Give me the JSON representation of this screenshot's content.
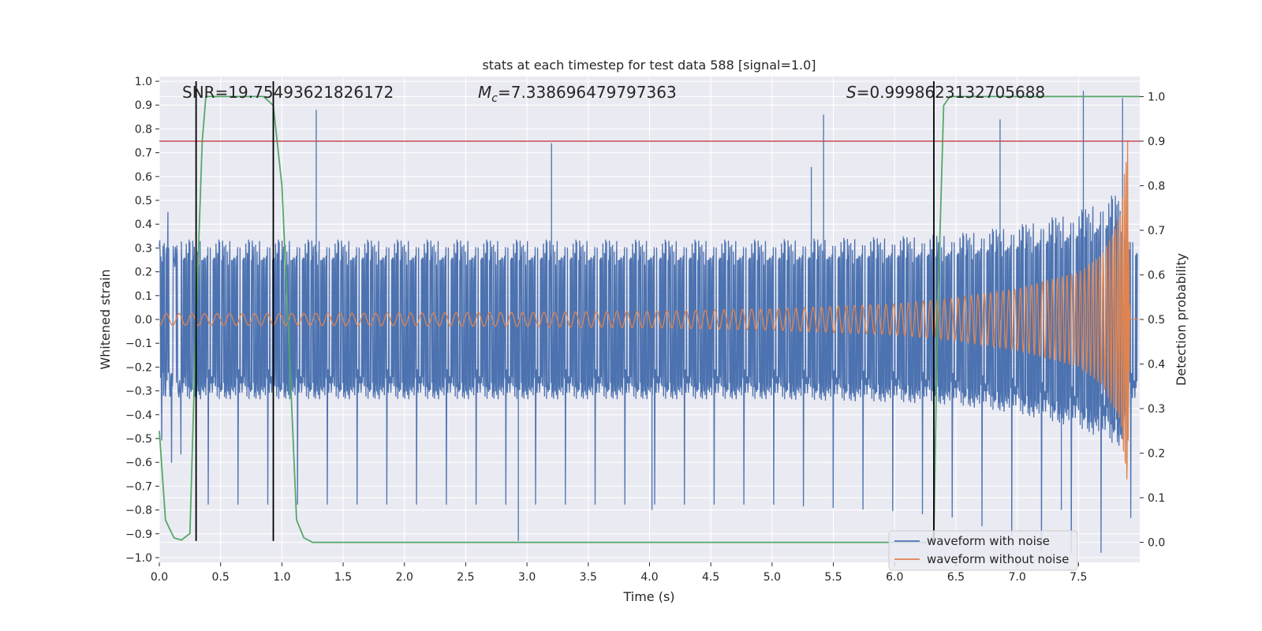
{
  "chart_data": {
    "type": "line",
    "title": "stats at each timestep for test data 588 [signal=1.0]",
    "xlabel": "Time (s)",
    "ylabel": "Whitened strain",
    "y2label": "Detection probability",
    "xlim": [
      0.0,
      8.0
    ],
    "ylim": [
      -1.02,
      1.02
    ],
    "y2lim": [
      -0.045,
      1.045
    ],
    "xticks": [
      0.0,
      0.5,
      1.0,
      1.5,
      2.0,
      2.5,
      3.0,
      3.5,
      4.0,
      4.5,
      5.0,
      5.5,
      6.0,
      6.5,
      7.0,
      7.5
    ],
    "xtick_labels": [
      "0.0",
      "0.5",
      "1.0",
      "1.5",
      "2.0",
      "2.5",
      "3.0",
      "3.5",
      "4.0",
      "4.5",
      "5.0",
      "5.5",
      "6.0",
      "6.5",
      "7.0",
      "7.5"
    ],
    "yticks": [
      1.0,
      0.9,
      0.8,
      0.7,
      0.6,
      0.5,
      0.4,
      0.3,
      0.2,
      0.1,
      0.0,
      -0.1,
      -0.2,
      -0.3,
      -0.4,
      -0.5,
      -0.6,
      -0.7,
      -0.8,
      -0.9,
      -1.0
    ],
    "ytick_labels": [
      "1.0",
      "0.9",
      "0.8",
      "0.7",
      "0.6",
      "0.5",
      "0.4",
      "0.3",
      "0.2",
      "0.1",
      "0.0",
      "−0.1",
      "−0.2",
      "−0.3",
      "−0.4",
      "−0.5",
      "−0.6",
      "−0.7",
      "−0.8",
      "−0.9",
      "−1.0"
    ],
    "y2ticks": [
      1.0,
      0.9,
      0.8,
      0.7,
      0.6,
      0.5,
      0.4,
      0.3,
      0.2,
      0.1,
      0.0
    ],
    "y2tick_labels": [
      "1.0",
      "0.9",
      "0.8",
      "0.7",
      "0.6",
      "0.5",
      "0.4",
      "0.3",
      "0.2",
      "0.1",
      "0.0"
    ],
    "annotations": {
      "snr": "SNR=19.75493621826172",
      "mc_symbol": "M",
      "mc_sub": "c",
      "mc_value": "=7.338696479797363",
      "s_symbol": "S",
      "s_value": "=0.9998623132705688"
    },
    "threshold_y2": 0.9,
    "vertical_lines_x": [
      0.3,
      0.93,
      6.32
    ],
    "vertical_lines_yrange": [
      -0.93,
      1.0
    ],
    "series": [
      {
        "name": "waveform with noise",
        "color": "#4c72b0",
        "kind": "noise",
        "envelope_x": [
          0.0,
          1.0,
          2.0,
          3.0,
          4.0,
          5.0,
          6.0,
          6.5,
          7.0,
          7.5,
          7.85,
          7.92,
          8.0
        ],
        "envelope_upper": [
          0.28,
          0.28,
          0.28,
          0.28,
          0.28,
          0.28,
          0.29,
          0.3,
          0.33,
          0.38,
          0.45,
          0.3,
          0.3
        ],
        "envelope_lower": [
          -0.28,
          -0.28,
          -0.28,
          -0.28,
          -0.28,
          -0.28,
          -0.29,
          -0.3,
          -0.33,
          -0.38,
          -0.45,
          -0.3,
          -0.3
        ],
        "peaks": [
          [
            1.28,
            0.88
          ],
          [
            2.93,
            -0.93
          ],
          [
            5.42,
            0.86
          ],
          [
            7.54,
            0.96
          ],
          [
            7.86,
            0.93
          ],
          [
            3.2,
            0.74
          ],
          [
            4.02,
            -0.8
          ],
          [
            5.32,
            0.64
          ],
          [
            6.86,
            0.84
          ],
          [
            7.36,
            -0.8
          ]
        ]
      },
      {
        "name": "waveform without noise",
        "color": "#dd8452",
        "kind": "chirp",
        "amp_x": [
          0.0,
          1.0,
          2.0,
          3.0,
          4.0,
          5.0,
          6.0,
          6.5,
          7.0,
          7.5,
          7.7,
          7.85,
          7.9,
          7.92,
          8.0
        ],
        "amp_y": [
          0.025,
          0.025,
          0.027,
          0.03,
          0.035,
          0.045,
          0.065,
          0.09,
          0.13,
          0.2,
          0.28,
          0.45,
          0.8,
          0.0,
          0.0
        ]
      },
      {
        "name": "detection probability",
        "color": "#55a868",
        "kind": "line",
        "axis": "y2",
        "x": [
          0.0,
          0.05,
          0.12,
          0.18,
          0.25,
          0.3,
          0.35,
          0.38,
          0.45,
          0.85,
          0.93,
          1.0,
          1.05,
          1.12,
          1.18,
          1.25,
          2.0,
          4.0,
          6.0,
          6.28,
          6.32,
          6.35,
          6.4,
          6.45,
          6.6,
          7.0,
          7.5,
          8.0
        ],
        "y": [
          0.25,
          0.05,
          0.01,
          0.005,
          0.02,
          0.5,
          0.9,
          1.0,
          1.0,
          1.0,
          0.98,
          0.8,
          0.5,
          0.05,
          0.01,
          0.0,
          0.0,
          0.0,
          0.0,
          0.0,
          0.02,
          0.5,
          0.98,
          1.0,
          1.0,
          1.0,
          1.0,
          1.0
        ]
      }
    ],
    "legend": {
      "location": "lower-right",
      "entries": [
        {
          "label": "waveform with noise",
          "color": "#4c72b0"
        },
        {
          "label": "waveform without noise",
          "color": "#dd8452"
        }
      ]
    }
  }
}
